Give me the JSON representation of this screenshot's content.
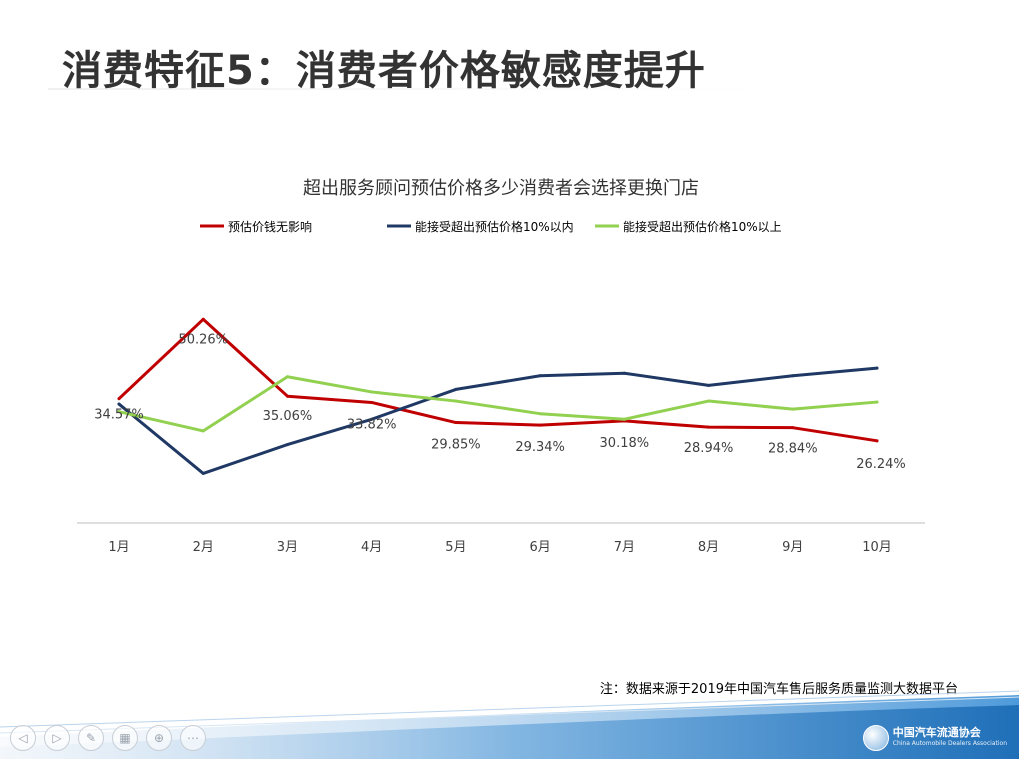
{
  "slide": {
    "title": "消费特征5：消费者价格敏感度提升",
    "footnote": "注：数据来源于2019年中国汽车售后服务质量监测大数据平台",
    "logo_cn": "中国汽车流通协会",
    "logo_en": "China Automobile Dealers Association"
  },
  "nav": {
    "buttons": [
      {
        "name": "prev-icon",
        "glyph": "◁"
      },
      {
        "name": "next-icon",
        "glyph": "▷"
      },
      {
        "name": "pen-icon",
        "glyph": "✎"
      },
      {
        "name": "slides-icon",
        "glyph": "▦"
      },
      {
        "name": "zoom-icon",
        "glyph": "⊕"
      },
      {
        "name": "more-icon",
        "glyph": "⋯"
      }
    ]
  },
  "colors": {
    "series_red": "#C00000",
    "series_navy": "#1F3864",
    "series_green": "#92D050",
    "axis": "#BFBFBF",
    "text": "#404040"
  },
  "chart_data": {
    "type": "line",
    "title": "超出服务顾问预估价格多少消费者会选择更换门店",
    "categories": [
      "1月",
      "2月",
      "3月",
      "4月",
      "5月",
      "6月",
      "7月",
      "8月",
      "9月",
      "10月"
    ],
    "ylim": [
      10,
      60
    ],
    "grid": false,
    "legend_position": "top",
    "series": [
      {
        "name": "预估价钱无影响",
        "color": "#C00000",
        "values": [
          34.57,
          50.26,
          35.06,
          33.82,
          29.85,
          29.34,
          30.18,
          28.94,
          28.84,
          26.24
        ],
        "labels": [
          "34.57%",
          "50.26%",
          "35.06%",
          "33.82%",
          "29.85%",
          "29.34%",
          "30.18%",
          "28.94%",
          "28.84%",
          "26.24%"
        ]
      },
      {
        "name": "能接受超出预估价格10%以内",
        "color": "#1F3864",
        "values": [
          33.5,
          19.8,
          25.5,
          30.5,
          36.4,
          39.1,
          39.6,
          37.2,
          39.1,
          40.6
        ]
      },
      {
        "name": "能接受超出预估价格10%以上",
        "color": "#92D050",
        "values": [
          32.0,
          28.2,
          38.9,
          35.9,
          34.1,
          31.6,
          30.5,
          34.1,
          32.5,
          33.9
        ]
      }
    ]
  }
}
